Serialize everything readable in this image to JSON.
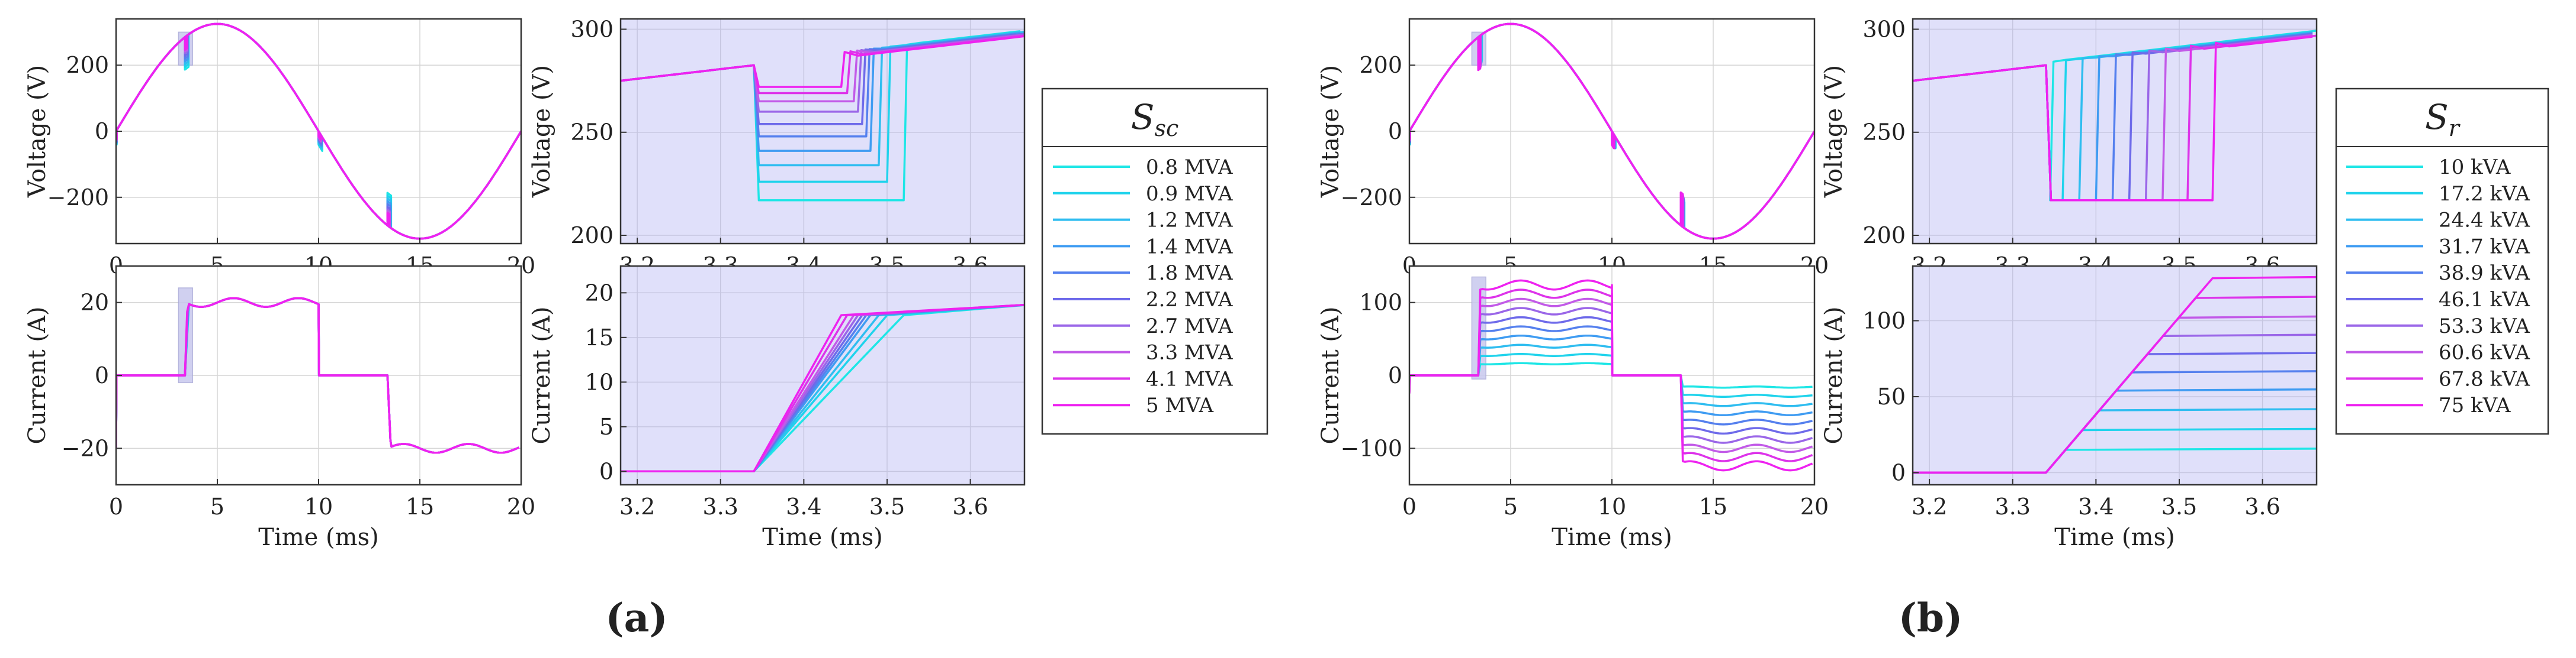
{
  "figure": {
    "panels": [
      {
        "caption": "(a)",
        "legend_title": "S",
        "legend_subscript": "sc",
        "legend_entries": [
          "0.8 MVA",
          "0.9 MVA",
          "1.2 MVA",
          "1.4 MVA",
          "1.8 MVA",
          "2.2 MVA",
          "2.7 MVA",
          "3.3 MVA",
          "4.1 MVA",
          "5 MVA"
        ]
      },
      {
        "caption": "(b)",
        "legend_title": "S",
        "legend_subscript": "r",
        "legend_entries": [
          "10 kVA",
          "17.2 kVA",
          "24.4 kVA",
          "31.7 kVA",
          "38.9 kVA",
          "46.1 kVA",
          "53.3 kVA",
          "60.6 kVA",
          "67.8 kVA",
          "75 kVA"
        ]
      }
    ]
  },
  "colors": {
    "series": [
      "#1ee6e6",
      "#1fd3ec",
      "#2fbdf0",
      "#3f9cf2",
      "#5580ee",
      "#6e6aea",
      "#9a66e8",
      "#c25ae8",
      "#dd33ea",
      "#ee22f0"
    ],
    "zoom_background": "#e0e0fa",
    "highlight_fill": "#c8c8ee",
    "axis": "#333333",
    "grid": "#d6d6d6"
  },
  "chart_data": [
    {
      "id": "a-voltage-full",
      "type": "line",
      "title": "",
      "xlabel": "",
      "ylabel": "Voltage (V)",
      "xlim": [
        0,
        20
      ],
      "ylim": [
        -340,
        340
      ],
      "xticks": [
        0,
        5,
        10,
        15,
        20
      ],
      "yticks": [
        -200,
        0,
        200
      ],
      "ytick_labels": [
        "−200",
        "0",
        "200"
      ],
      "grid": true,
      "waveform": "sine",
      "amplitude": 325,
      "period_ms": 20,
      "commutation_ms": [
        0,
        3.4,
        10,
        13.4
      ],
      "notch_min_by_series": [
        218,
        225,
        232,
        239,
        246,
        253,
        260,
        264,
        268,
        270
      ],
      "highlight": {
        "x": [
          3.2,
          3.66
        ],
        "y": [
          200,
          300
        ]
      }
    },
    {
      "id": "a-current-full",
      "type": "line",
      "title": "",
      "xlabel": "Time (ms)",
      "ylabel": "Current (A)",
      "xlim": [
        0,
        20
      ],
      "ylim": [
        -30,
        30
      ],
      "xticks": [
        0,
        5,
        10,
        15,
        20
      ],
      "yticks": [
        -20,
        0,
        20
      ],
      "ytick_labels": [
        "−20",
        "0",
        "20"
      ],
      "grid": true,
      "conduction_ms": [
        [
          3.4,
          10,
          1
        ],
        [
          13.4,
          20,
          -1
        ]
      ],
      "dc_current_A": 20,
      "highlight": {
        "x": [
          3.2,
          3.66
        ],
        "y": [
          -2,
          24
        ]
      }
    },
    {
      "id": "a-voltage-zoom",
      "type": "line",
      "title": "",
      "xlabel": "",
      "ylabel": "Voltage (V)",
      "xlim": [
        3.18,
        3.665
      ],
      "ylim": [
        196,
        305
      ],
      "xticks": [
        3.2,
        3.3,
        3.4,
        3.5,
        3.6
      ],
      "yticks": [
        200,
        250,
        300
      ],
      "grid": true,
      "notch_start_ms": 3.34,
      "notch_end_ms": [
        3.52,
        3.5,
        3.49,
        3.48,
        3.475,
        3.47,
        3.465,
        3.46,
        3.452,
        3.445
      ],
      "notch_level_V": [
        217,
        226,
        234,
        241,
        248,
        254,
        260,
        265,
        269,
        272
      ]
    },
    {
      "id": "a-current-zoom",
      "type": "line",
      "title": "",
      "xlabel": "Time (ms)",
      "ylabel": "Current (A)",
      "xlim": [
        3.18,
        3.665
      ],
      "ylim": [
        -1.5,
        23
      ],
      "xticks": [
        3.2,
        3.3,
        3.4,
        3.5,
        3.6
      ],
      "yticks": [
        0,
        5,
        10,
        15,
        20
      ],
      "grid": true,
      "commutation_start_ms": 3.34,
      "commutation_end_ms": [
        3.52,
        3.5,
        3.49,
        3.48,
        3.475,
        3.47,
        3.465,
        3.46,
        3.452,
        3.445
      ],
      "final_current_A": 17.5
    },
    {
      "id": "b-voltage-full",
      "type": "line",
      "title": "",
      "xlabel": "",
      "ylabel": "Voltage (V)",
      "xlim": [
        0,
        20
      ],
      "ylim": [
        -340,
        340
      ],
      "xticks": [
        0,
        5,
        10,
        15,
        20
      ],
      "yticks": [
        -200,
        0,
        200
      ],
      "ytick_labels": [
        "−200",
        "0",
        "200"
      ],
      "grid": true,
      "waveform": "sine",
      "amplitude": 325,
      "period_ms": 20,
      "commutation_ms": [
        0,
        3.4,
        10,
        13.4
      ],
      "notch_min_by_series": [
        235,
        232,
        230,
        228,
        226,
        224,
        222,
        220,
        218,
        217
      ],
      "highlight": {
        "x": [
          3.2,
          3.66
        ],
        "y": [
          200,
          300
        ]
      }
    },
    {
      "id": "b-current-full",
      "type": "line",
      "title": "",
      "xlabel": "Time (ms)",
      "ylabel": "Current (A)",
      "xlim": [
        0,
        20
      ],
      "ylim": [
        -150,
        150
      ],
      "xticks": [
        0,
        5,
        10,
        15,
        20
      ],
      "yticks": [
        -100,
        0,
        100
      ],
      "ytick_labels": [
        "−100",
        "0",
        "100"
      ],
      "grid": true,
      "conduction_ms": [
        [
          3.4,
          10,
          1
        ],
        [
          13.4,
          20,
          -1
        ]
      ],
      "dc_current_by_series_A": [
        16,
        28,
        40,
        52,
        64,
        76,
        88,
        100,
        112,
        124
      ],
      "highlight": {
        "x": [
          3.2,
          3.66
        ],
        "y": [
          -5,
          135
        ]
      }
    },
    {
      "id": "b-voltage-zoom",
      "type": "line",
      "title": "",
      "xlabel": "",
      "ylabel": "Voltage (V)",
      "xlim": [
        3.18,
        3.665
      ],
      "ylim": [
        196,
        305
      ],
      "xticks": [
        3.2,
        3.3,
        3.4,
        3.5,
        3.6
      ],
      "yticks": [
        200,
        250,
        300
      ],
      "grid": true,
      "notch_start_ms": 3.34,
      "notch_end_ms": [
        3.345,
        3.36,
        3.38,
        3.4,
        3.42,
        3.44,
        3.46,
        3.48,
        3.51,
        3.54
      ],
      "notch_level_V": [
        217,
        217,
        217,
        217,
        217,
        217,
        217,
        217,
        217,
        217
      ]
    },
    {
      "id": "b-current-zoom",
      "type": "line",
      "title": "",
      "xlabel": "Time (ms)",
      "ylabel": "Current (A)",
      "xlim": [
        3.18,
        3.665
      ],
      "ylim": [
        -8,
        136
      ],
      "xticks": [
        3.2,
        3.3,
        3.4,
        3.5,
        3.6
      ],
      "yticks": [
        0,
        50,
        100
      ],
      "grid": true,
      "commutation_start_ms": 3.34,
      "commutation_slope_A_per_ms": 640,
      "final_current_by_series_A": [
        15,
        28,
        41,
        54,
        66,
        78,
        90,
        102,
        115,
        128
      ]
    }
  ]
}
